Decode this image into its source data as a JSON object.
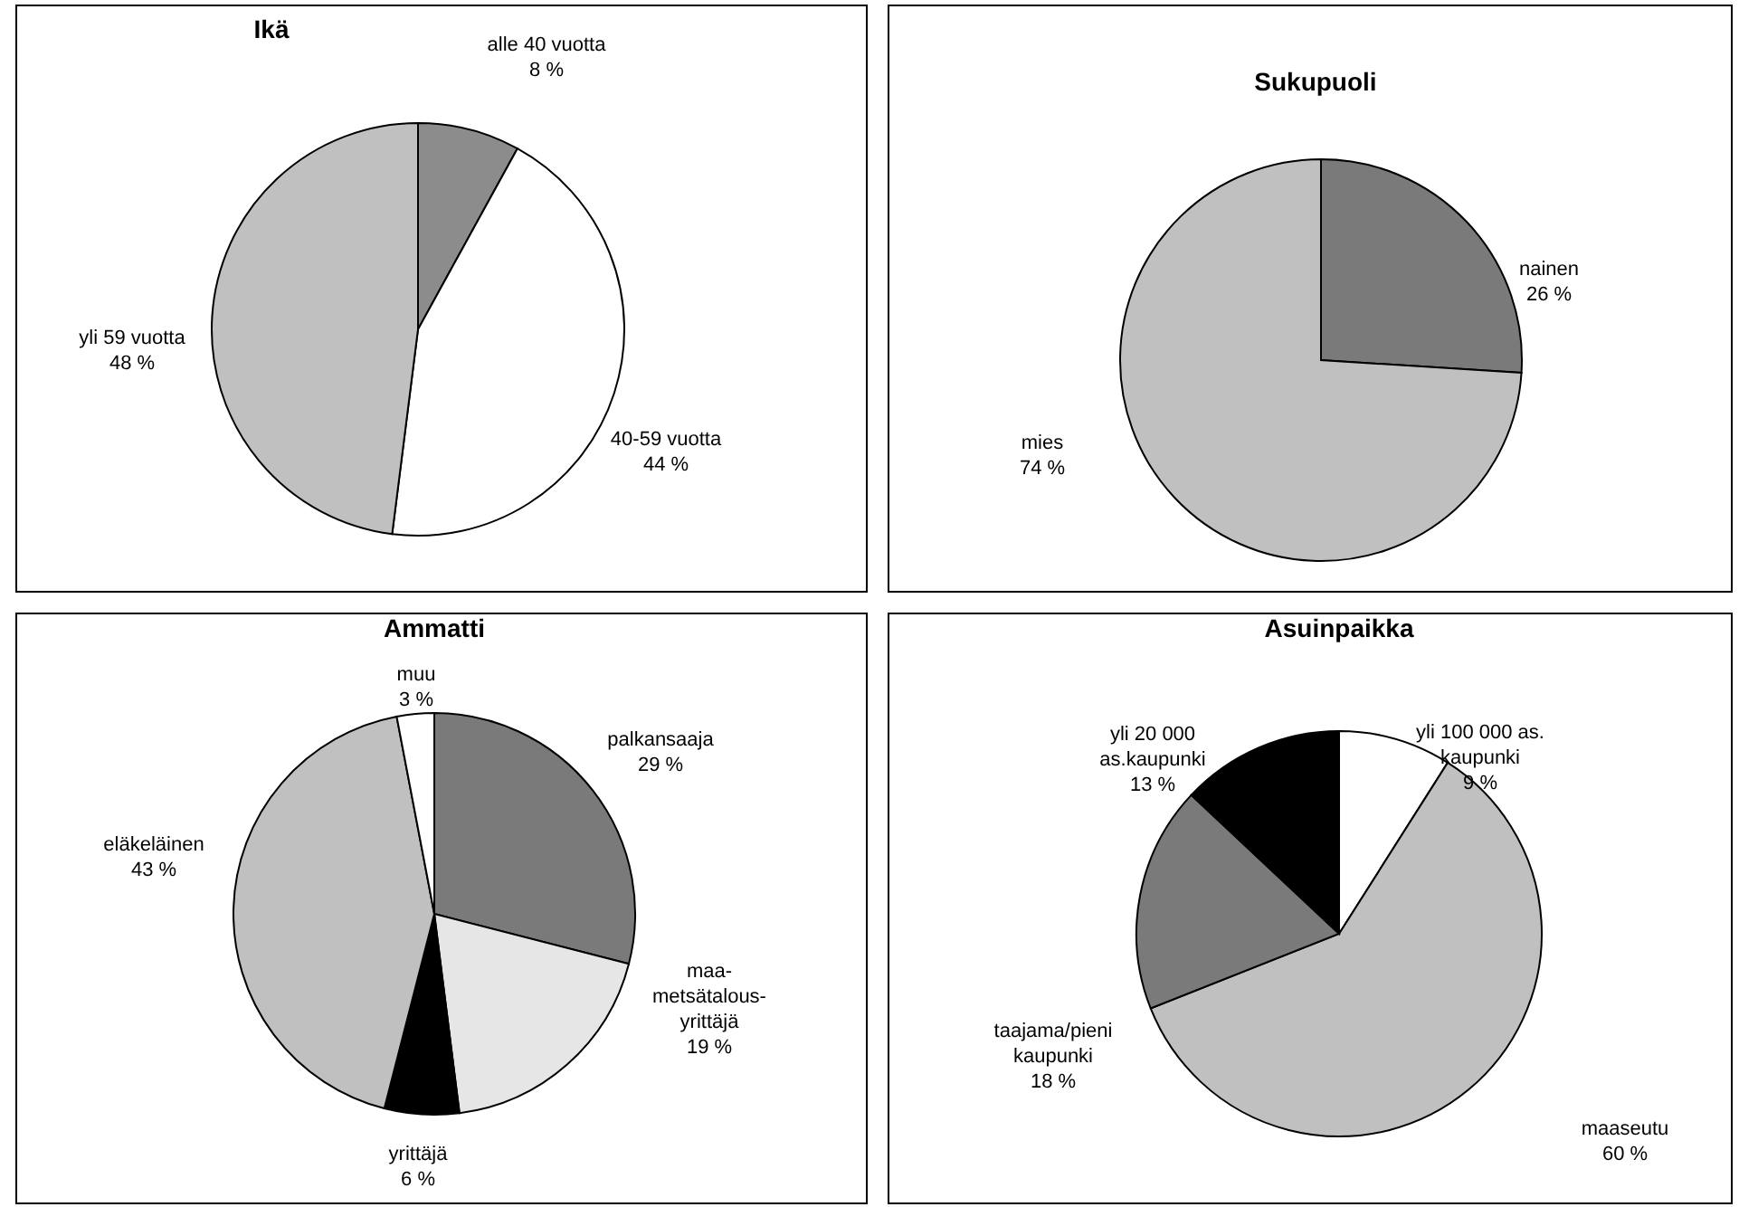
{
  "chart_data": [
    {
      "type": "pie",
      "title": "Ikä",
      "categories": [
        "alle 40 vuotta",
        "40-59 vuotta",
        "yli 59 vuotta"
      ],
      "values": [
        8,
        44,
        48
      ],
      "value_labels": [
        "8 %",
        "44 %",
        "48 %"
      ],
      "colors": [
        "#8c8c8c",
        "#ffffff",
        "#c0c0c0"
      ]
    },
    {
      "type": "pie",
      "title": "Sukupuoli",
      "categories": [
        "nainen",
        "mies"
      ],
      "values": [
        26,
        74
      ],
      "value_labels": [
        "26 %",
        "74 %"
      ],
      "colors": [
        "#7a7a7a",
        "#c0c0c0"
      ]
    },
    {
      "type": "pie",
      "title": "Ammatti",
      "categories": [
        "palkansaaja",
        "maa-\nmetsätalous-\nyrittäjä",
        "yrittäjä",
        "eläkeläinen",
        "muu"
      ],
      "values": [
        29,
        19,
        6,
        43,
        3
      ],
      "value_labels": [
        "29 %",
        "19 %",
        "6 %",
        "43 %",
        "3 %"
      ],
      "colors": [
        "#7a7a7a",
        "#e6e6e6",
        "#000000",
        "#c0c0c0",
        "#ffffff"
      ]
    },
    {
      "type": "pie",
      "title": "Asuinpaikka",
      "categories": [
        "yli 100 000 as.\nkaupunki",
        "maaseutu",
        "taajama/pieni\nkaupunki",
        "yli 20 000\nas.kaupunki"
      ],
      "values": [
        9,
        60,
        18,
        13
      ],
      "value_labels": [
        "9 %",
        "60 %",
        "18 %",
        "13 %"
      ],
      "colors": [
        "#ffffff",
        "#c0c0c0",
        "#7a7a7a",
        "#000000"
      ]
    }
  ]
}
